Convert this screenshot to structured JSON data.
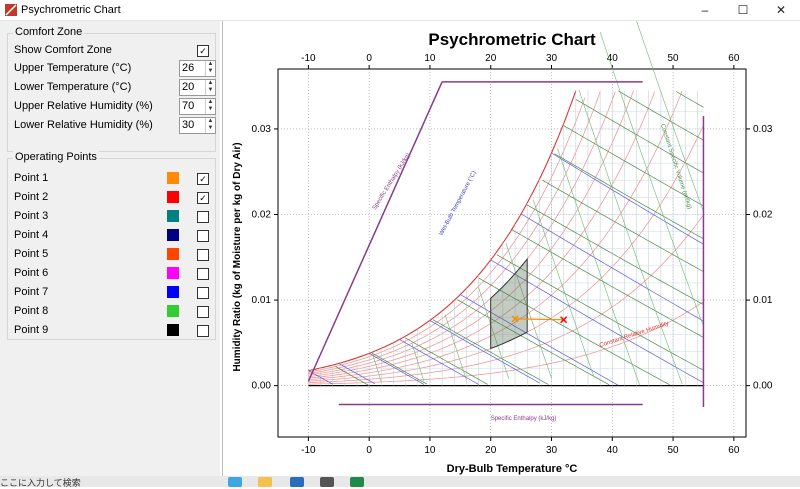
{
  "window": {
    "title": "Psychrometric Chart",
    "minimize_icon": "minimize-icon",
    "maximize_icon": "maximize-icon",
    "close_icon": "close-icon"
  },
  "comfort_zone": {
    "group_label": "Comfort Zone",
    "show_label": "Show Comfort Zone",
    "show_checked": true,
    "fields": [
      {
        "label": "Upper Temperature (°C)",
        "value": "26"
      },
      {
        "label": "Lower Temperature (°C)",
        "value": "20"
      },
      {
        "label": "Upper Relative Humidity (%)",
        "value": "70"
      },
      {
        "label": "Lower Relative Humidity (%)",
        "value": "30"
      }
    ]
  },
  "operating_points": {
    "group_label": "Operating Points",
    "points": [
      {
        "label": "Point 1",
        "color": "#ff8c00",
        "checked": true
      },
      {
        "label": "Point 2",
        "color": "#ff0000",
        "checked": true
      },
      {
        "label": "Point 3",
        "color": "#008080",
        "checked": false
      },
      {
        "label": "Point 4",
        "color": "#000080",
        "checked": false
      },
      {
        "label": "Point 5",
        "color": "#ff4500",
        "checked": false
      },
      {
        "label": "Point 6",
        "color": "#ff00ff",
        "checked": false
      },
      {
        "label": "Point 7",
        "color": "#0000ff",
        "checked": false
      },
      {
        "label": "Point 8",
        "color": "#32cd32",
        "checked": false
      },
      {
        "label": "Point 9",
        "color": "#000000",
        "checked": false
      }
    ]
  },
  "chart_data": {
    "type": "scatter",
    "title": "Psychrometric Chart",
    "xlabel": "Dry-Bulb Temperature °C",
    "ylabel": "Humidity Ratio (kg of Moisture per kg of Dry Air)",
    "xlim": [
      -15,
      62
    ],
    "ylim": [
      -0.006,
      0.037
    ],
    "x_ticks": [
      "-10",
      "0",
      "10",
      "20",
      "30",
      "40",
      "50",
      "60"
    ],
    "y_ticks": [
      "0.00",
      "0.01",
      "0.02",
      "0.03"
    ],
    "series_labels": {
      "wet_bulb": "Wet-Bulb Temperature (°C)",
      "enthalpy": "Specific Enthalpy (kJ/kg)",
      "rh": "Constant Relative Humidity",
      "specific_volume": "Constant Specific Volume (m³/kg)"
    },
    "comfort_zone": {
      "t_low": 20,
      "t_high": 26,
      "rh_low": 30,
      "rh_high": 70
    },
    "points": [
      {
        "name": "Point 1",
        "t": 24,
        "w": 0.0078,
        "color": "#ff8c00"
      },
      {
        "name": "Point 2",
        "t": 32,
        "w": 0.0077,
        "color": "#ff0000"
      }
    ]
  },
  "taskbar": {
    "search_text": "ここに入力して検索"
  }
}
